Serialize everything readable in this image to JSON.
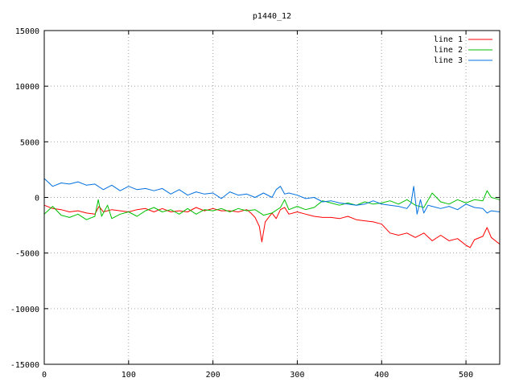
{
  "chart_data": {
    "type": "line",
    "title": "p1440_12",
    "xlabel": "",
    "ylabel": "",
    "xlim": [
      0,
      540
    ],
    "ylim": [
      -15000,
      15000
    ],
    "xticks": [
      0,
      100,
      200,
      300,
      400,
      500
    ],
    "yticks": [
      -15000,
      -10000,
      -5000,
      0,
      5000,
      10000,
      15000
    ],
    "grid": true,
    "legend_position": "top-right",
    "series": [
      {
        "name": "line 1",
        "color": "#ff0000",
        "x": [
          0,
          10,
          20,
          30,
          40,
          50,
          60,
          65,
          70,
          80,
          90,
          100,
          110,
          120,
          130,
          140,
          150,
          160,
          170,
          180,
          190,
          200,
          210,
          220,
          230,
          240,
          245,
          250,
          255,
          258,
          262,
          270,
          275,
          280,
          285,
          290,
          300,
          310,
          320,
          330,
          340,
          350,
          360,
          370,
          380,
          390,
          400,
          410,
          420,
          430,
          440,
          450,
          460,
          470,
          480,
          490,
          500,
          505,
          510,
          520,
          525,
          530,
          540
        ],
        "y": [
          -700,
          -1000,
          -1100,
          -1300,
          -1200,
          -1400,
          -1500,
          -800,
          -1300,
          -1100,
          -1200,
          -1300,
          -1100,
          -1000,
          -1300,
          -1000,
          -1300,
          -1200,
          -1300,
          -900,
          -1200,
          -1000,
          -1200,
          -1200,
          -1300,
          -1100,
          -1400,
          -1800,
          -2600,
          -4000,
          -2200,
          -1400,
          -1900,
          -1100,
          -900,
          -1500,
          -1300,
          -1500,
          -1700,
          -1800,
          -1800,
          -1900,
          -1700,
          -2000,
          -2100,
          -2200,
          -2400,
          -3200,
          -3400,
          -3200,
          -3600,
          -3200,
          -3900,
          -3400,
          -3900,
          -3700,
          -4300,
          -4500,
          -3800,
          -3500,
          -2700,
          -3600,
          -4200
        ]
      },
      {
        "name": "line 2",
        "color": "#00c000",
        "x": [
          0,
          10,
          20,
          30,
          40,
          50,
          60,
          64,
          68,
          75,
          80,
          90,
          100,
          110,
          120,
          130,
          140,
          150,
          160,
          170,
          180,
          190,
          200,
          210,
          220,
          230,
          240,
          250,
          260,
          270,
          280,
          285,
          290,
          300,
          310,
          320,
          330,
          340,
          350,
          360,
          370,
          380,
          390,
          400,
          410,
          420,
          430,
          440,
          450,
          460,
          470,
          480,
          490,
          500,
          510,
          520,
          525,
          530,
          540
        ],
        "y": [
          -1500,
          -800,
          -1600,
          -1800,
          -1500,
          -2000,
          -1700,
          -200,
          -1700,
          -700,
          -1900,
          -1500,
          -1300,
          -1700,
          -1200,
          -900,
          -1300,
          -1100,
          -1500,
          -1000,
          -1500,
          -1100,
          -1200,
          -1000,
          -1300,
          -1000,
          -1200,
          -1100,
          -1600,
          -1400,
          -900,
          -200,
          -1100,
          -800,
          -1100,
          -900,
          -300,
          -500,
          -700,
          -500,
          -700,
          -400,
          -600,
          -500,
          -300,
          -600,
          -200,
          -700,
          -900,
          400,
          -400,
          -600,
          -200,
          -500,
          -200,
          -300,
          600,
          0,
          -200
        ]
      },
      {
        "name": "line 3",
        "color": "#0070e0",
        "x": [
          0,
          10,
          20,
          30,
          40,
          50,
          60,
          70,
          80,
          90,
          100,
          110,
          120,
          130,
          140,
          150,
          160,
          170,
          180,
          190,
          200,
          210,
          220,
          230,
          240,
          250,
          260,
          270,
          275,
          280,
          285,
          290,
          300,
          310,
          320,
          330,
          340,
          350,
          360,
          370,
          380,
          390,
          400,
          410,
          420,
          430,
          435,
          438,
          442,
          446,
          450,
          455,
          460,
          470,
          480,
          490,
          500,
          510,
          520,
          525,
          530,
          540
        ],
        "y": [
          1700,
          1000,
          1300,
          1200,
          1400,
          1100,
          1200,
          700,
          1100,
          600,
          1000,
          700,
          800,
          600,
          800,
          300,
          700,
          200,
          500,
          300,
          400,
          -100,
          500,
          200,
          300,
          0,
          400,
          0,
          700,
          1000,
          300,
          400,
          200,
          -100,
          0,
          -400,
          -300,
          -500,
          -600,
          -700,
          -600,
          -300,
          -600,
          -700,
          -800,
          -1000,
          -500,
          1000,
          -1500,
          -200,
          -1400,
          -700,
          -800,
          -1000,
          -800,
          -1100,
          -600,
          -900,
          -1000,
          -1400,
          -1200,
          -1300
        ]
      }
    ]
  }
}
